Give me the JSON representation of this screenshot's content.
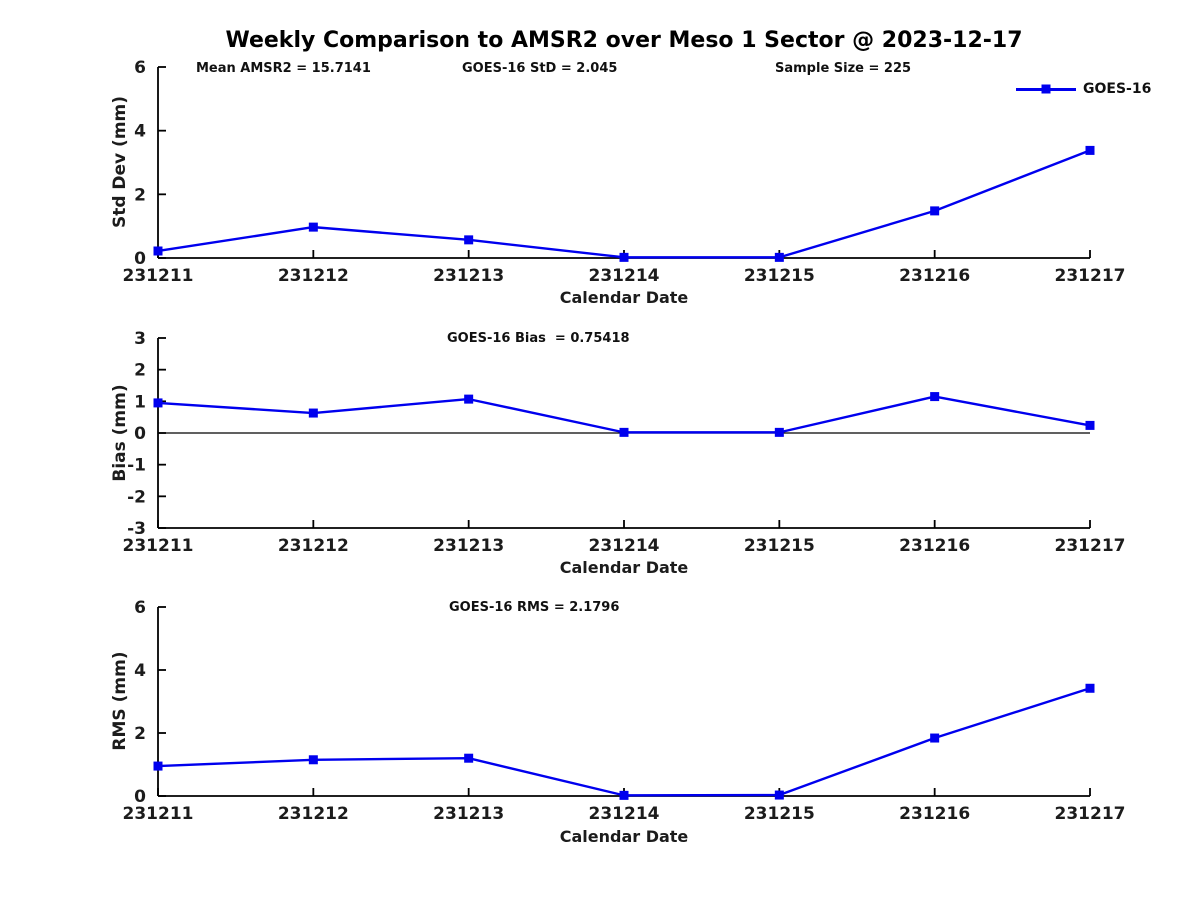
{
  "title": "Weekly Comparison to AMSR2 over Meso 1 Sector @ 2023-12-17",
  "legend": {
    "label": "GOES-16"
  },
  "colors": {
    "line": "#0000EE",
    "marker": "#0000EE",
    "axis": "#000000",
    "text": "#1c1c1c",
    "zero_line": "#000000"
  },
  "chart_data": [
    {
      "type": "line",
      "panel": "std-dev",
      "ylabel": "Std Dev (mm)",
      "xlabel": "Calendar Date",
      "ylim": [
        0,
        6
      ],
      "yticks": [
        0,
        2,
        4,
        6
      ],
      "categories": [
        "231211",
        "231212",
        "231213",
        "231214",
        "231215",
        "231216",
        "231217"
      ],
      "series": [
        {
          "name": "GOES-16",
          "values": [
            0.22,
            0.97,
            0.57,
            0.02,
            0.02,
            1.48,
            3.38
          ]
        }
      ],
      "annotations": [
        {
          "text": "Mean AMSR2 = 15.7141"
        },
        {
          "text": "GOES-16 StD = 2.045"
        },
        {
          "text": "Sample Size = 225"
        }
      ],
      "zero_line": false,
      "grid": false,
      "legend_position": "top-right"
    },
    {
      "type": "line",
      "panel": "bias",
      "ylabel": "Bias (mm)",
      "xlabel": "Calendar Date",
      "ylim": [
        -3,
        3
      ],
      "yticks": [
        -3,
        -2,
        -1,
        0,
        1,
        2,
        3
      ],
      "categories": [
        "231211",
        "231212",
        "231213",
        "231214",
        "231215",
        "231216",
        "231217"
      ],
      "series": [
        {
          "name": "GOES-16",
          "values": [
            0.95,
            0.63,
            1.07,
            0.02,
            0.02,
            1.15,
            0.24
          ]
        }
      ],
      "annotations": [
        {
          "text": "GOES-16 Bias  = 0.75418"
        }
      ],
      "zero_line": true,
      "grid": false,
      "legend_position": "none"
    },
    {
      "type": "line",
      "panel": "rms",
      "ylabel": "RMS (mm)",
      "xlabel": "Calendar Date",
      "ylim": [
        0,
        6
      ],
      "yticks": [
        0,
        2,
        4,
        6
      ],
      "categories": [
        "231211",
        "231212",
        "231213",
        "231214",
        "231215",
        "231216",
        "231217"
      ],
      "series": [
        {
          "name": "GOES-16",
          "values": [
            0.95,
            1.15,
            1.2,
            0.02,
            0.03,
            1.84,
            3.42
          ]
        }
      ],
      "annotations": [
        {
          "text": "GOES-16 RMS = 2.1796"
        }
      ],
      "zero_line": false,
      "grid": false,
      "legend_position": "none"
    }
  ]
}
